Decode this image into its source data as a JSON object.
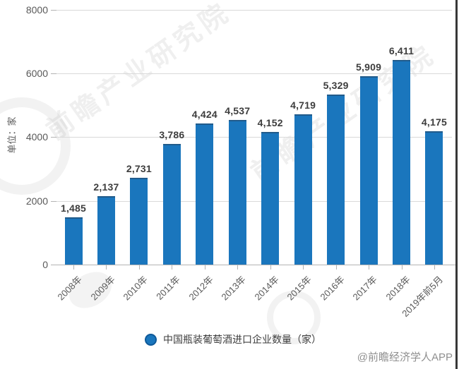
{
  "chart_data": {
    "type": "bar",
    "title": "",
    "categories": [
      "2008年",
      "2009年",
      "2010年",
      "2011年",
      "2012年",
      "2013年",
      "2014年",
      "2015年",
      "2016年",
      "2017年",
      "2018年",
      "2019年前5月"
    ],
    "values": [
      1485,
      2137,
      2731,
      3786,
      4424,
      4537,
      4152,
      4719,
      5329,
      5909,
      6411,
      4175
    ],
    "value_labels": [
      "1,485",
      "2,137",
      "2,731",
      "3,786",
      "4,424",
      "4,537",
      "4,152",
      "4,719",
      "5,329",
      "5,909",
      "6,411",
      "4,175"
    ],
    "xlabel": "",
    "ylabel": "单位：家",
    "yticks": [
      0,
      2000,
      4000,
      6000,
      8000
    ],
    "ylim": [
      0,
      8000
    ],
    "grid": true,
    "legend": "中国瓶装葡萄酒进口企业数量（家）",
    "legend_position": "bottom",
    "bar_color": "#1a76bd"
  },
  "watermark": {
    "text": "前瞻产业研究院"
  },
  "attribution": "@前瞻经济学人APP"
}
